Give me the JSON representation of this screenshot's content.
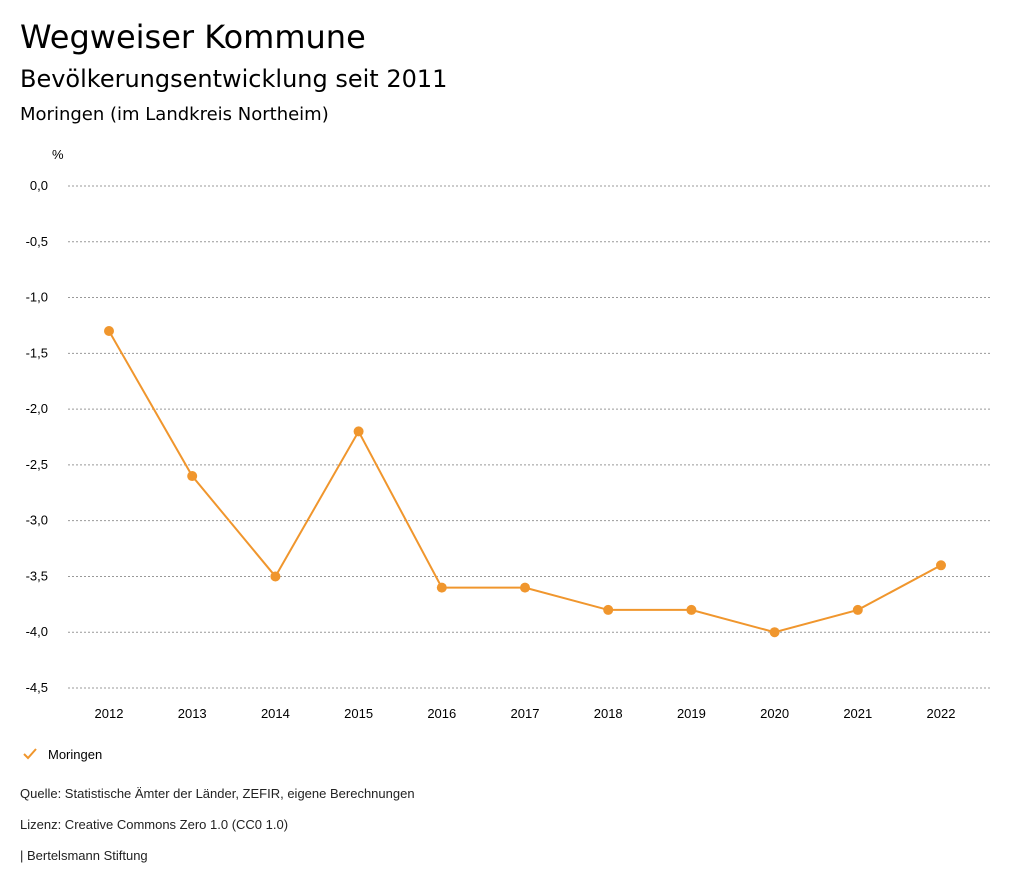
{
  "header": {
    "title": "Wegweiser Kommune",
    "subtitle": "Bevölkerungsentwicklung seit 2011",
    "region": "Moringen (im Landkreis Northeim)"
  },
  "chart_data": {
    "type": "line",
    "ylabel": "%",
    "categories": [
      "2012",
      "2013",
      "2014",
      "2015",
      "2016",
      "2017",
      "2018",
      "2019",
      "2020",
      "2021",
      "2022"
    ],
    "series": [
      {
        "name": "Moringen",
        "color": "#f0962d",
        "values": [
          -1.3,
          -2.6,
          -3.5,
          -2.2,
          -3.6,
          -3.6,
          -3.8,
          -3.8,
          -4.0,
          -3.8,
          -3.4
        ]
      }
    ],
    "ylim": [
      -4.5,
      0
    ],
    "yticks": [
      0,
      -0.5,
      -1,
      -1.5,
      -2,
      -2.5,
      -3,
      -3.5,
      -4,
      -4.5
    ],
    "ytick_labels": [
      "0,0",
      "-0,5",
      "-1,0",
      "-1,5",
      "-2,0",
      "-2,5",
      "-3,0",
      "-3,5",
      "-4,0",
      "-4,5"
    ],
    "grid": true,
    "legend": "bottom-left"
  },
  "legend": {
    "label": "Moringen",
    "color": "#f0962d"
  },
  "footer": {
    "source": "Quelle: Statistische Ämter der Länder, ZEFIR, eigene Berechnungen",
    "license": "Lizenz: Creative Commons Zero 1.0 (CC0 1.0)",
    "publisher": "| Bertelsmann Stiftung"
  }
}
